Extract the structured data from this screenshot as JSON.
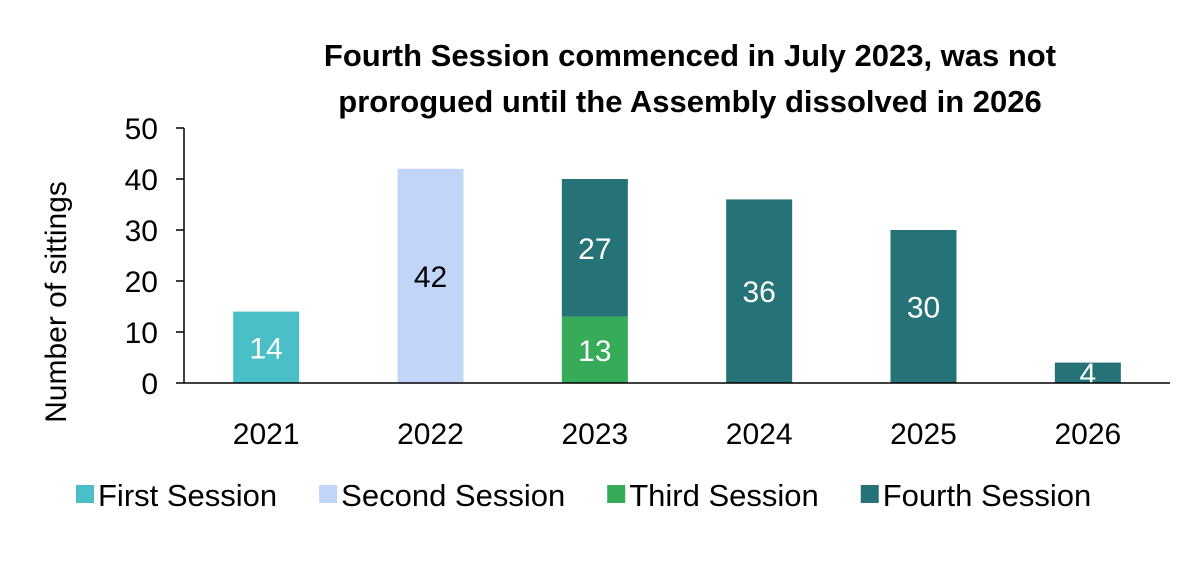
{
  "chart_data": {
    "type": "bar",
    "stacked": true,
    "title_lines": [
      "Fourth Session commenced in July 2023, was not",
      "prorogued until the Assembly dissolved in 2026"
    ],
    "xlabel": "",
    "ylabel": "Number of sittings",
    "ylim": [
      0,
      50
    ],
    "yticks": [
      "0",
      "10",
      "20",
      "30",
      "40",
      "50"
    ],
    "categories": [
      "2021",
      "2022",
      "2023",
      "2024",
      "2025",
      "2026"
    ],
    "series": [
      {
        "name": "First Session",
        "color": "#4bbfc8",
        "label_color": "#ffffff",
        "values": [
          14,
          0,
          0,
          0,
          0,
          0
        ]
      },
      {
        "name": "Second Session",
        "color": "#c3d4f9",
        "label_color": "#000000",
        "values": [
          0,
          42,
          0,
          0,
          0,
          0
        ]
      },
      {
        "name": "Third Session",
        "color": "#36ab58",
        "label_color": "#ffffff",
        "values": [
          0,
          0,
          13,
          0,
          0,
          0
        ]
      },
      {
        "name": "Fourth Session",
        "color": "#267377",
        "label_color": "#ffffff",
        "values": [
          0,
          0,
          27,
          36,
          30,
          4
        ]
      }
    ],
    "grid": false,
    "legend_position": "bottom"
  }
}
